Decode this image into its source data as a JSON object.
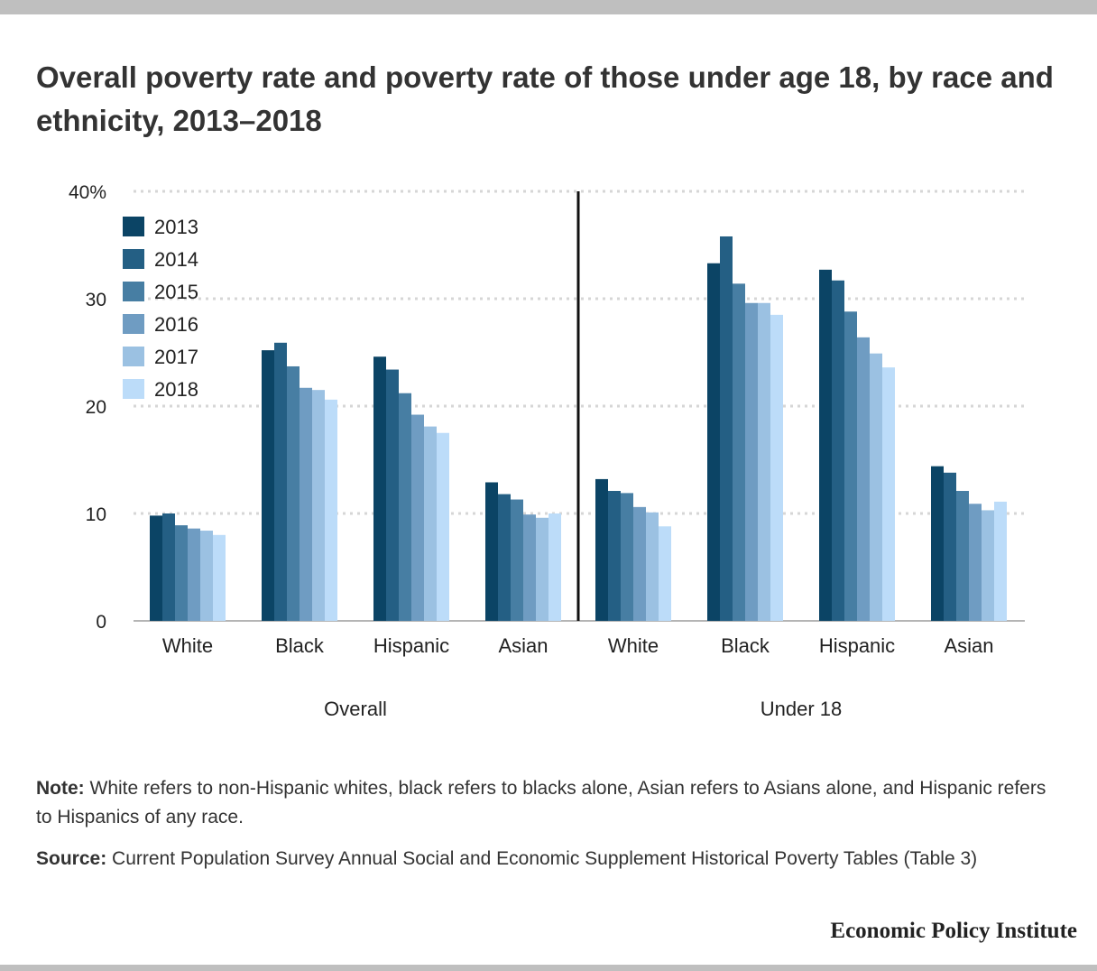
{
  "title": "Overall poverty rate and poverty rate of those under age 18, by race and ethnicity, 2013–2018",
  "note_label": "Note:",
  "note_text": "White refers to non-Hispanic whites, black refers to blacks alone, Asian refers to Asians alone, and Hispanic refers to Hispanics of any race.",
  "source_label": "Source:",
  "source_text": "Current Population Survey Annual Social and Economic Supplement Historical Poverty Tables (Table 3)",
  "brand": "Economic Policy Institute",
  "chart_data": {
    "type": "bar",
    "ylim": [
      0,
      40
    ],
    "y_ticks": [
      {
        "value": 0,
        "label": "0"
      },
      {
        "value": 10,
        "label": "10"
      },
      {
        "value": 20,
        "label": "20"
      },
      {
        "value": 30,
        "label": "30"
      },
      {
        "value": 40,
        "label": "40%"
      }
    ],
    "grid": true,
    "legend_placement": "top-left",
    "groups": [
      {
        "name": "Overall",
        "categories": [
          "White",
          "Black",
          "Hispanic",
          "Asian"
        ]
      },
      {
        "name": "Under 18",
        "categories": [
          "White",
          "Black",
          "Hispanic",
          "Asian"
        ]
      }
    ],
    "series": [
      {
        "name": "2013",
        "color": "#0b4465",
        "values": [
          [
            9.8,
            25.2,
            24.6,
            12.9
          ],
          [
            13.2,
            33.3,
            32.7,
            14.4
          ]
        ]
      },
      {
        "name": "2014",
        "color": "#245f84",
        "values": [
          [
            10.0,
            25.9,
            23.4,
            11.8
          ],
          [
            12.1,
            35.8,
            31.7,
            13.8
          ]
        ]
      },
      {
        "name": "2015",
        "color": "#477ea3",
        "values": [
          [
            8.9,
            23.7,
            21.2,
            11.3
          ],
          [
            11.9,
            31.4,
            28.8,
            12.1
          ]
        ]
      },
      {
        "name": "2016",
        "color": "#6f9cc2",
        "values": [
          [
            8.6,
            21.7,
            19.2,
            9.9
          ],
          [
            10.6,
            29.6,
            26.4,
            10.9
          ]
        ]
      },
      {
        "name": "2017",
        "color": "#9bc1e2",
        "values": [
          [
            8.4,
            21.5,
            18.1,
            9.6
          ],
          [
            10.1,
            29.6,
            24.9,
            10.3
          ]
        ]
      },
      {
        "name": "2018",
        "color": "#bcdcf9",
        "values": [
          [
            8.0,
            20.6,
            17.5,
            10.0
          ],
          [
            8.8,
            28.5,
            23.6,
            11.1
          ]
        ]
      }
    ]
  }
}
